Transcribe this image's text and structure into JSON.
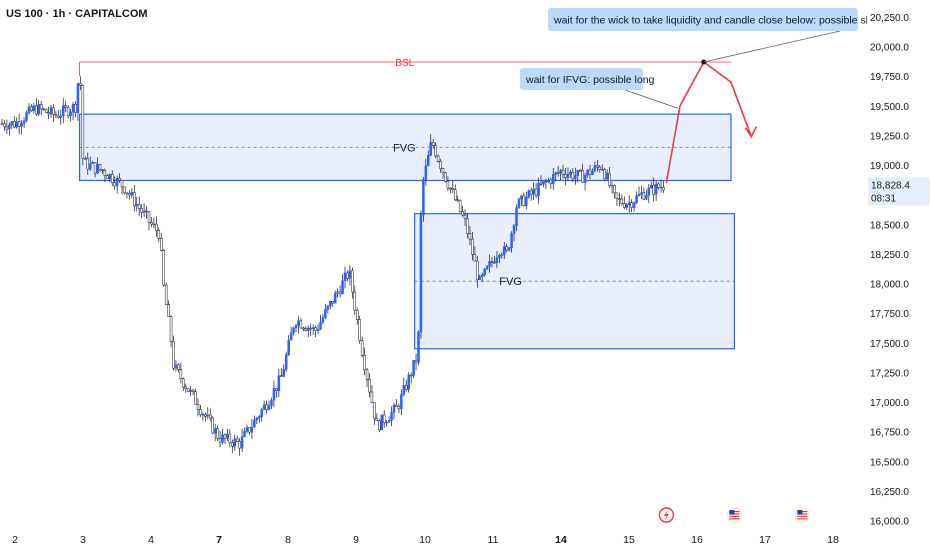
{
  "symbol_title": "US 100 · 1h · CAPITALCOM",
  "price_tag": {
    "value": "18,828.4",
    "countdown": "08:31",
    "price": 18828.4
  },
  "chart_data": {
    "type": "candlestick",
    "title": "US 100 · 1h · CAPITALCOM",
    "ylim": [
      16000,
      20250
    ],
    "y_ticks": [
      16000,
      16250,
      16500,
      16750,
      17000,
      17250,
      17500,
      17750,
      18000,
      18250,
      18500,
      18750,
      19000,
      19250,
      19500,
      19750,
      20000,
      20250
    ],
    "y_tick_labels": [
      "16,000.0",
      "16,250.0",
      "16,500.0",
      "16,750.0",
      "17,000.0",
      "17,250.0",
      "17,500.0",
      "17,750.0",
      "18,000.0",
      "18,250.0",
      "18,500.0",
      "18,750.0",
      "19,000.0",
      "19,250.0",
      "19,500.0",
      "19,750.0",
      "20,000.0",
      "20,250.0"
    ],
    "x_ticks": [
      {
        "label": "2",
        "day": 2,
        "bold": false
      },
      {
        "label": "3",
        "day": 3,
        "bold": false
      },
      {
        "label": "4",
        "day": 4,
        "bold": false
      },
      {
        "label": "7",
        "day": 7,
        "bold": true
      },
      {
        "label": "8",
        "day": 8,
        "bold": false
      },
      {
        "label": "9",
        "day": 9,
        "bold": false
      },
      {
        "label": "10",
        "day": 10,
        "bold": false
      },
      {
        "label": "11",
        "day": 11,
        "bold": false
      },
      {
        "label": "14",
        "day": 14,
        "bold": true
      },
      {
        "label": "15",
        "day": 15,
        "bold": false
      },
      {
        "label": "16",
        "day": 16,
        "bold": false
      },
      {
        "label": "17",
        "day": 17,
        "bold": false
      },
      {
        "label": "18",
        "day": 18,
        "bold": false
      }
    ],
    "price_path": [
      [
        2.0,
        19350
      ],
      [
        2.3,
        19480
      ],
      [
        2.6,
        19420
      ],
      [
        2.9,
        19500
      ],
      [
        2.95,
        19880
      ],
      [
        3.0,
        19020
      ],
      [
        3.3,
        18950
      ],
      [
        3.6,
        18820
      ],
      [
        4.0,
        18500
      ],
      [
        4.4,
        18420
      ],
      [
        4.5,
        18050
      ],
      [
        4.9,
        17500
      ],
      [
        5.0,
        17300
      ],
      [
        7.0,
        16700
      ],
      [
        7.3,
        16650
      ],
      [
        7.7,
        17000
      ],
      [
        7.9,
        17200
      ],
      [
        8.1,
        17700
      ],
      [
        8.4,
        17600
      ],
      [
        8.7,
        17900
      ],
      [
        8.9,
        18100
      ],
      [
        9.1,
        17400
      ],
      [
        9.3,
        16800
      ],
      [
        9.6,
        16950
      ],
      [
        9.9,
        17400
      ],
      [
        9.95,
        18800
      ],
      [
        10.1,
        19200
      ],
      [
        10.3,
        18900
      ],
      [
        10.6,
        18500
      ],
      [
        10.8,
        18000
      ],
      [
        11.0,
        18200
      ],
      [
        11.3,
        18300
      ],
      [
        11.6,
        18250
      ],
      [
        11.9,
        18500
      ],
      [
        12.0,
        18650
      ],
      [
        14.0,
        18950
      ],
      [
        14.3,
        18900
      ],
      [
        14.6,
        19000
      ],
      [
        14.8,
        18700
      ],
      [
        15.0,
        18680
      ],
      [
        15.2,
        18760
      ],
      [
        15.5,
        18828
      ]
    ],
    "zones": [
      {
        "label": "FVG",
        "x_start": 2.95,
        "x_end": 16.5,
        "top": 19430,
        "bottom": 18870,
        "mid": 19150
      },
      {
        "label": "FVG",
        "x_start": 9.85,
        "x_end": 16.55,
        "top": 18590,
        "bottom": 17450,
        "mid": 18020
      }
    ],
    "levels": [
      {
        "label": "BSL",
        "price": 19870,
        "x_start": 2.95,
        "x_end": 16.5
      }
    ],
    "projection": [
      [
        15.55,
        18850
      ],
      [
        15.75,
        19500
      ],
      [
        16.1,
        19870
      ],
      [
        16.5,
        19700
      ],
      [
        16.8,
        19240
      ]
    ],
    "annotations": [
      {
        "text": "wait for the wick to take liquidity and candle close below: possible short"
      },
      {
        "text": "wait for IFVG: possible long"
      }
    ]
  },
  "colors": {
    "bull": "#2962ff",
    "bear": "#ffffff",
    "wick": "#131722",
    "zone_fill": "#e8eefc",
    "zone_stroke": "#2962ff",
    "bsl": "#f23645",
    "projection": "#f23645",
    "callout_bg": "#bbd9fb",
    "price_tag": "#e4eefc"
  },
  "markers": [
    {
      "name": "lightning-icon",
      "day": 15.55
    },
    {
      "name": "us-flag-icon",
      "day": 16.55
    },
    {
      "name": "us-flag-icon",
      "day": 17.55
    }
  ]
}
